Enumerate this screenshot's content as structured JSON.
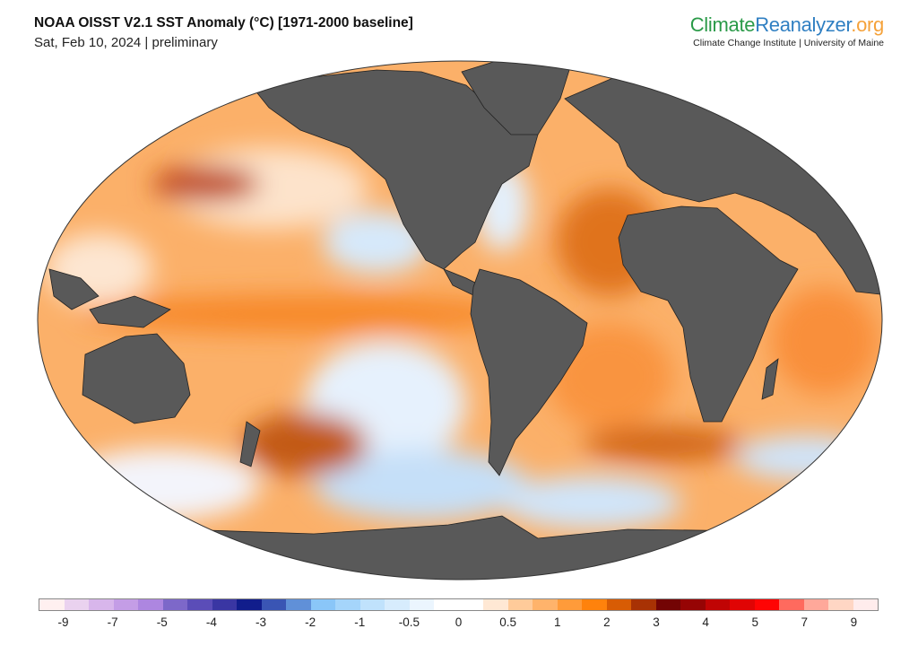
{
  "header": {
    "title": "NOAA OISST V2.1 SST Anomaly (°C) [1971-2000 baseline]",
    "subtitle": "Sat, Feb 10, 2024 | preliminary"
  },
  "brand": {
    "part1": "Climate",
    "part2": "Reanalyzer",
    "part3": ".org",
    "tagline": "Climate Change Institute | University of Maine",
    "colors": {
      "climate": "#2a9a48",
      "reanalyzer": "#2f7fc2",
      "org": "#f5a23a"
    }
  },
  "map": {
    "land_color": "#595959",
    "ocean_base_color": "#fbb069"
  },
  "colorbar": {
    "colors": [
      "#fff0f0",
      "#ead2ef",
      "#d8b6eb",
      "#c49de6",
      "#ad86e0",
      "#7d68c9",
      "#5b4db8",
      "#3a36a3",
      "#111d8c",
      "#3a55b4",
      "#6090d8",
      "#8ac6f8",
      "#a5d5fb",
      "#c0e2fc",
      "#d7ecfd",
      "#ebf5fe",
      "#ffffff",
      "#ffffff",
      "#ffe8d4",
      "#ffcb9a",
      "#ffb36b",
      "#ff9b3a",
      "#ff820c",
      "#d85c04",
      "#a83204",
      "#730404",
      "#960404",
      "#c00404",
      "#e00404",
      "#ff0404",
      "#ff6a5e",
      "#ffa89a",
      "#ffd6c4",
      "#ffecec"
    ],
    "labels": [
      "-9",
      "-7",
      "-5",
      "-4",
      "-3",
      "-2",
      "-1",
      "-0.5",
      "0",
      "0.5",
      "1",
      "2",
      "3",
      "4",
      "5",
      "7",
      "9"
    ]
  }
}
